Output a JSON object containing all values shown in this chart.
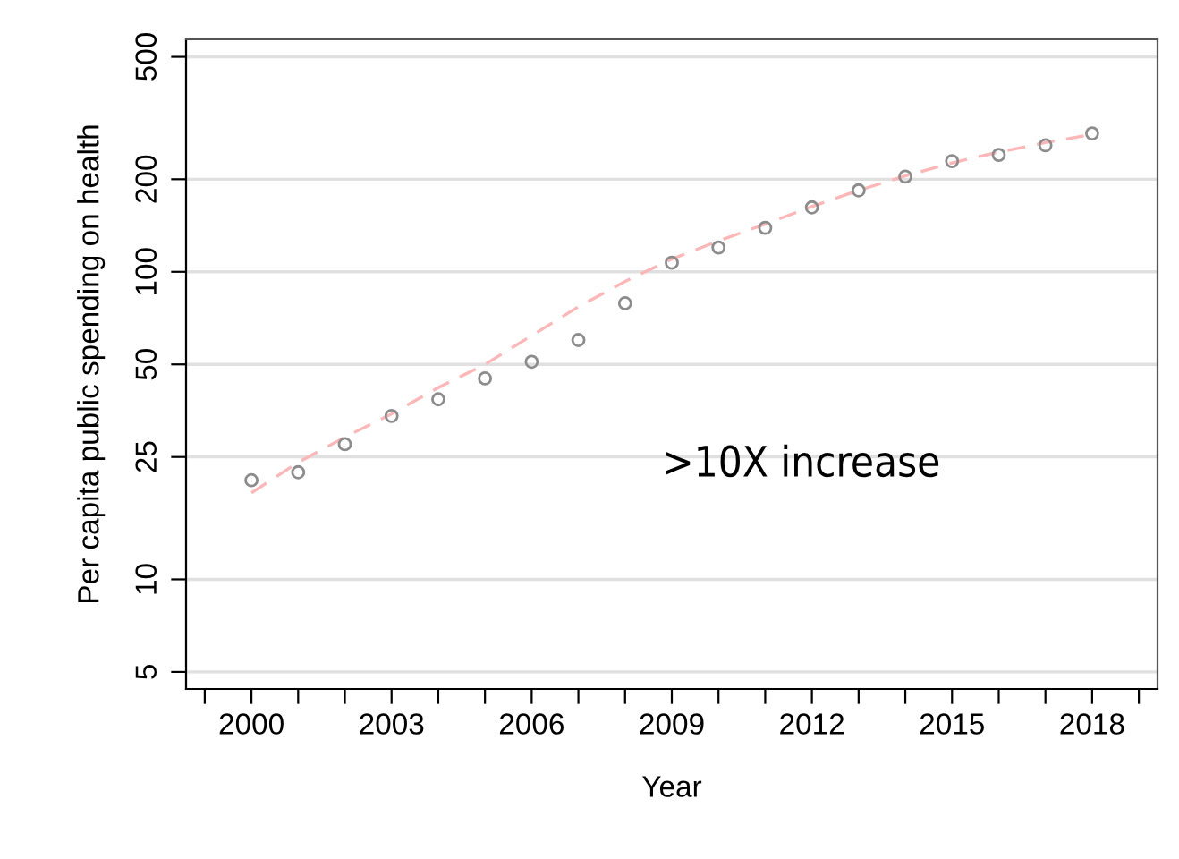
{
  "chart_data": {
    "type": "scatter",
    "xlabel": "Year",
    "ylabel": "Per capita public spending on health",
    "x": [
      2000,
      2001,
      2002,
      2003,
      2004,
      2005,
      2006,
      2007,
      2008,
      2009,
      2010,
      2011,
      2012,
      2013,
      2014,
      2015,
      2016,
      2017,
      2018
    ],
    "series": [
      {
        "color": "#8c8c8c",
        "marker": "circle",
        "values": [
          21.0,
          22.3,
          27.5,
          34,
          38.5,
          45,
          51,
          60,
          79,
          107,
          120,
          139,
          162,
          184,
          204,
          229,
          240,
          258,
          282
        ]
      },
      {
        "type": "line",
        "color": "#ffb6b6",
        "line_style": "dashed",
        "marker": "none",
        "values": [
          19.1,
          24,
          29,
          34.5,
          42,
          50,
          62,
          77,
          93,
          110,
          126,
          143,
          163,
          184,
          205,
          226,
          245,
          263,
          280
        ]
      }
    ],
    "log": "y",
    "xlim": [
      1998.6,
      2019.4
    ],
    "ylim": [
      4.4,
      570
    ],
    "xticks": [
      {
        "value": 1999,
        "label": null
      },
      {
        "value": 2000,
        "label": "2000"
      },
      {
        "value": 2001,
        "label": null
      },
      {
        "value": 2002,
        "label": null
      },
      {
        "value": 2003,
        "label": "2003"
      },
      {
        "value": 2004,
        "label": null
      },
      {
        "value": 2005,
        "label": null
      },
      {
        "value": 2006,
        "label": "2006"
      },
      {
        "value": 2007,
        "label": null
      },
      {
        "value": 2008,
        "label": null
      },
      {
        "value": 2009,
        "label": "2009"
      },
      {
        "value": 2010,
        "label": null
      },
      {
        "value": 2011,
        "label": null
      },
      {
        "value": 2012,
        "label": "2012"
      },
      {
        "value": 2013,
        "label": null
      },
      {
        "value": 2014,
        "label": null
      },
      {
        "value": 2015,
        "label": "2015"
      },
      {
        "value": 2016,
        "label": null
      },
      {
        "value": 2017,
        "label": null
      },
      {
        "value": 2018,
        "label": "2018"
      },
      {
        "value": 2019,
        "label": null
      }
    ],
    "yticks": [
      5,
      10,
      25,
      50,
      100,
      200,
      500
    ],
    "grid": "y",
    "annotations": [
      ">10X increase"
    ]
  }
}
